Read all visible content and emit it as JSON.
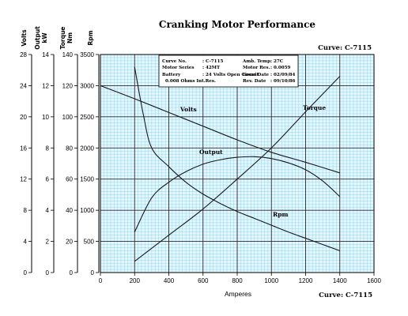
{
  "title": "Cranking Motor Performance",
  "curve_label": "Curve: C-7115",
  "chart_data": {
    "type": "line",
    "xlabel": "Amperes",
    "xlim": [
      0,
      1600
    ],
    "x_ticks": [
      0,
      200,
      400,
      600,
      800,
      1000,
      1200,
      1400,
      1600
    ],
    "y_axes": [
      {
        "label": "Volts",
        "range": [
          0,
          28
        ],
        "ticks": [
          0,
          4,
          8,
          12,
          16,
          20,
          24,
          28
        ]
      },
      {
        "label": "Output kW",
        "range": [
          0,
          14
        ],
        "ticks": [
          0,
          2,
          4,
          6,
          8,
          10,
          12,
          14
        ]
      },
      {
        "label": "Torque Nm",
        "range": [
          0,
          140
        ],
        "ticks": [
          0,
          20,
          40,
          60,
          80,
          100,
          120,
          140
        ]
      },
      {
        "label": "Rpm",
        "range": [
          0,
          3500
        ],
        "ticks": [
          0,
          500,
          1000,
          1500,
          2000,
          2500,
          3000,
          3500
        ]
      }
    ],
    "grid": true,
    "series": [
      {
        "name": "Volts",
        "axis": "Rpm",
        "x": [
          0,
          200,
          400,
          600,
          800,
          1000,
          1200,
          1400
        ],
        "y": [
          3000,
          2790,
          2570,
          2350,
          2130,
          1930,
          1770,
          1600
        ]
      },
      {
        "name": "Torque",
        "axis": "Rpm",
        "x": [
          200,
          400,
          600,
          800,
          1000,
          1200,
          1400
        ],
        "y": [
          180,
          600,
          1020,
          1500,
          2000,
          2580,
          3150
        ]
      },
      {
        "name": "Output",
        "axis": "Rpm",
        "x": [
          200,
          300,
          400,
          500,
          600,
          700,
          800,
          900,
          1000,
          1100,
          1200,
          1300,
          1400
        ],
        "y": [
          650,
          1200,
          1450,
          1620,
          1740,
          1810,
          1850,
          1860,
          1830,
          1760,
          1650,
          1470,
          1220
        ]
      },
      {
        "name": "Rpm",
        "axis": "Rpm",
        "x": [
          200,
          250,
          300,
          400,
          500,
          600,
          700,
          800,
          900,
          1000,
          1100,
          1200,
          1300,
          1400
        ],
        "y": [
          3300,
          2550,
          2000,
          1700,
          1450,
          1260,
          1110,
          980,
          870,
          760,
          650,
          550,
          450,
          350
        ]
      }
    ],
    "info_box": [
      [
        "Curve No.",
        ": C-7115",
        "Amb. Temp.",
        ": 27C"
      ],
      [
        "Motor Series",
        ": 42MT",
        "Motor Res.",
        ": 0.0059"
      ],
      [
        "Battery",
        ": 24 Volts Open Circuit",
        "Issue Date",
        ": 02/09/84"
      ],
      [
        "",
        "0.008 Ohms Int.Res.",
        "Rev. Date",
        ": 09/10/86"
      ]
    ]
  }
}
